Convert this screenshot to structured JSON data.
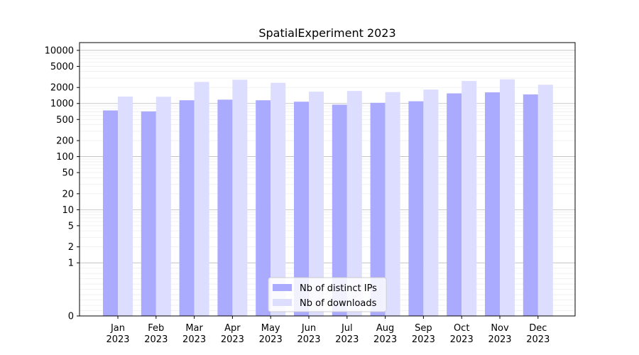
{
  "chart_data": {
    "type": "bar",
    "title": "SpatialExperiment 2023",
    "xlabel": "",
    "ylabel": "",
    "yscale": "symlog",
    "ylim": [
      0,
      14000
    ],
    "categories": [
      {
        "month": "Jan",
        "year": "2023"
      },
      {
        "month": "Feb",
        "year": "2023"
      },
      {
        "month": "Mar",
        "year": "2023"
      },
      {
        "month": "Apr",
        "year": "2023"
      },
      {
        "month": "May",
        "year": "2023"
      },
      {
        "month": "Jun",
        "year": "2023"
      },
      {
        "month": "Jul",
        "year": "2023"
      },
      {
        "month": "Aug",
        "year": "2023"
      },
      {
        "month": "Sep",
        "year": "2023"
      },
      {
        "month": "Oct",
        "year": "2023"
      },
      {
        "month": "Nov",
        "year": "2023"
      },
      {
        "month": "Dec",
        "year": "2023"
      }
    ],
    "series": [
      {
        "name": "Nb of distinct IPs",
        "color": "#aaaaff",
        "values": [
          740,
          710,
          1150,
          1180,
          1150,
          1080,
          950,
          1030,
          1100,
          1550,
          1620,
          1480
        ]
      },
      {
        "name": "Nb of downloads",
        "color": "#ddddff",
        "values": [
          1350,
          1340,
          2550,
          2800,
          2450,
          1670,
          1720,
          1640,
          1830,
          2650,
          2850,
          2250
        ]
      }
    ],
    "yticks": [
      {
        "value": 0,
        "label": "0"
      },
      {
        "value": 1,
        "label": "1"
      },
      {
        "value": 2,
        "label": "2"
      },
      {
        "value": 5,
        "label": "5"
      },
      {
        "value": 10,
        "label": "10"
      },
      {
        "value": 20,
        "label": "20"
      },
      {
        "value": 50,
        "label": "50"
      },
      {
        "value": 100,
        "label": "100"
      },
      {
        "value": 200,
        "label": "200"
      },
      {
        "value": 500,
        "label": "500"
      },
      {
        "value": 1000,
        "label": "1000"
      },
      {
        "value": 2000,
        "label": "2000"
      },
      {
        "value": 5000,
        "label": "5000"
      },
      {
        "value": 10000,
        "label": "10000"
      }
    ],
    "grid": true,
    "legend_position": "bottom-center"
  }
}
